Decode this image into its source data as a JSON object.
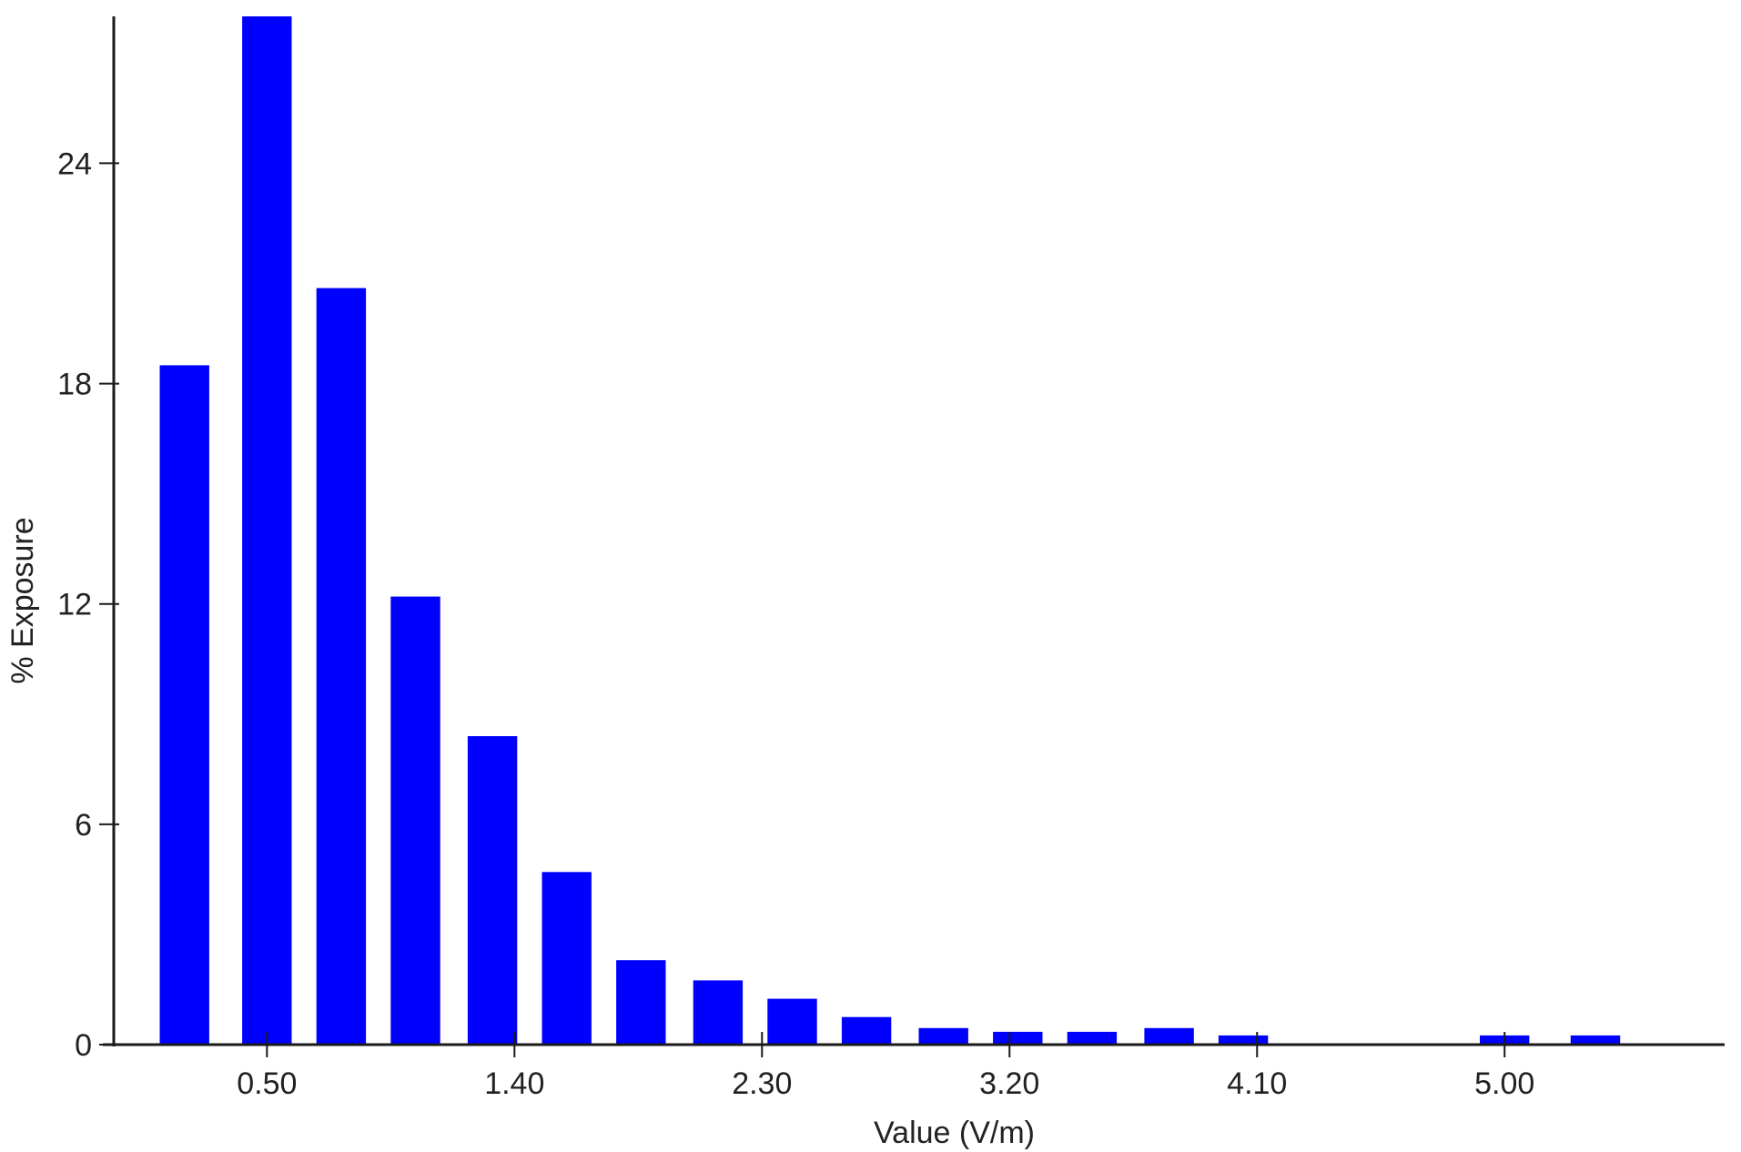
{
  "chart_data": {
    "type": "bar",
    "xlabel": "Value (V/m)",
    "ylabel": "% Exposure",
    "bar_color": "#0000ff",
    "axis_color": "#1a1a1a",
    "ylim": [
      0,
      28
    ],
    "yticks": [
      0,
      6,
      12,
      18,
      24
    ],
    "ytick_labels": [
      "0",
      "6",
      "12",
      "18",
      "24"
    ],
    "xlim": [
      -0.1,
      5.8
    ],
    "xticks": [
      0.5,
      1.4,
      2.3,
      3.2,
      4.1,
      5.0
    ],
    "xtick_labels": [
      "0.50",
      "1.40",
      "2.30",
      "3.20",
      "4.10",
      "5.00"
    ],
    "bar_width": 0.18,
    "series": [
      {
        "x": [
          0.2,
          0.5,
          0.77,
          1.04,
          1.32,
          1.59,
          1.86,
          2.14,
          2.41,
          2.68,
          2.96,
          3.23,
          3.5,
          3.78,
          4.05,
          5.0,
          5.33
        ],
        "values": [
          18.5,
          28.0,
          20.6,
          12.2,
          8.4,
          4.7,
          2.3,
          1.75,
          1.25,
          0.75,
          0.45,
          0.35,
          0.35,
          0.45,
          0.25,
          0.25,
          0.25
        ]
      }
    ]
  }
}
